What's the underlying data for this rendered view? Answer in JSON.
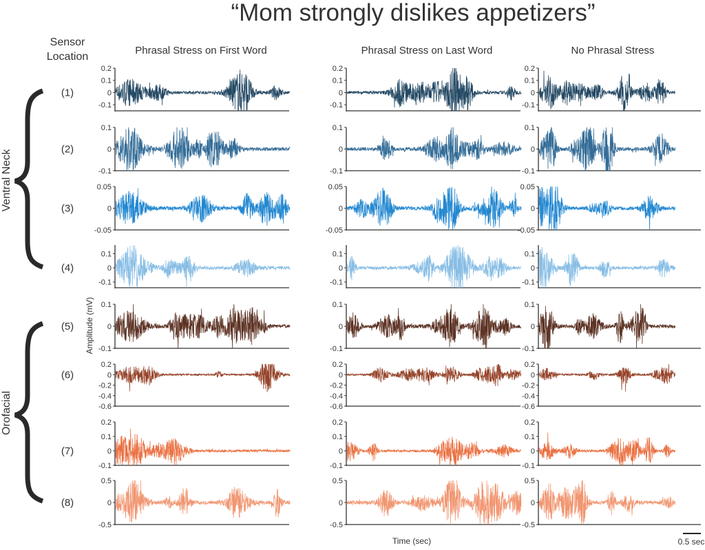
{
  "title": "“Mom strongly dislikes appetizers”",
  "sensor_header": [
    "Sensor",
    "Location"
  ],
  "groups": [
    {
      "label": "Ventral Neck",
      "rows": [
        1,
        4
      ]
    },
    {
      "label": "Orofacial",
      "rows": [
        5,
        8
      ]
    }
  ],
  "ylabel": "Amplitude (mV)",
  "xlabel": "Time (sec)",
  "scale_bar": {
    "label": "0.5 sec",
    "value_sec": 0.5
  },
  "chart_data": {
    "type": "line",
    "columns": [
      {
        "title": "Phrasal Stress on First Word",
        "duration_sec": 4.9
      },
      {
        "title": "Phrasal Stress on Last Word",
        "duration_sec": 4.9
      },
      {
        "title": "No Phrasal Stress",
        "duration_sec": 3.8
      }
    ],
    "rows": [
      {
        "label": "(1)",
        "color": "#0c3553",
        "ylim": [
          -0.15,
          0.2
        ],
        "ticks": [
          "0.2",
          "0.1",
          "0",
          "-0.1"
        ],
        "tick_values": [
          0.2,
          0.1,
          0,
          -0.1
        ]
      },
      {
        "label": "(2)",
        "color": "#1d5c8c",
        "ylim": [
          -0.1,
          0.1
        ],
        "ticks": [
          "0.1",
          "0",
          "-0.1"
        ],
        "tick_values": [
          0.1,
          0,
          -0.1
        ]
      },
      {
        "label": "(3)",
        "color": "#0b7bcc",
        "ylim": [
          -0.05,
          0.05
        ],
        "ticks": [
          "0.05",
          "0",
          "-0.05"
        ],
        "tick_values": [
          0.05,
          0,
          -0.05
        ]
      },
      {
        "label": "(4)",
        "color": "#7ab6e2",
        "ylim": [
          -0.14,
          0.16
        ],
        "ticks": [
          "0.1",
          "0",
          "-0.1"
        ],
        "tick_values": [
          0.1,
          0,
          -0.1
        ]
      },
      {
        "label": "(5)",
        "color": "#4b1d0c",
        "ylim": [
          -0.1,
          0.1
        ],
        "ticks": [
          "0.1",
          "0",
          "-0.1"
        ],
        "tick_values": [
          0.1,
          0,
          -0.1
        ]
      },
      {
        "label": "(6)",
        "color": "#8b2f12",
        "ylim": [
          -0.6,
          0.2
        ],
        "ticks": [
          "0.2",
          "0",
          "-0.2",
          "-0.4",
          "-0.6"
        ],
        "tick_values": [
          0.2,
          0,
          -0.2,
          -0.4,
          -0.6
        ]
      },
      {
        "label": "(7)",
        "color": "#e8622e",
        "ylim": [
          -0.1,
          0.2
        ],
        "ticks": [
          "0.2",
          "0.1",
          "0",
          "-0.1"
        ],
        "tick_values": [
          0.2,
          0.1,
          0,
          -0.1
        ]
      },
      {
        "label": "(8)",
        "color": "#f08b62",
        "ylim": [
          -0.5,
          0.5
        ],
        "ticks": [
          "0.5",
          "0",
          "-0.5"
        ],
        "tick_values": [
          0.5,
          0,
          -0.5
        ]
      }
    ]
  }
}
